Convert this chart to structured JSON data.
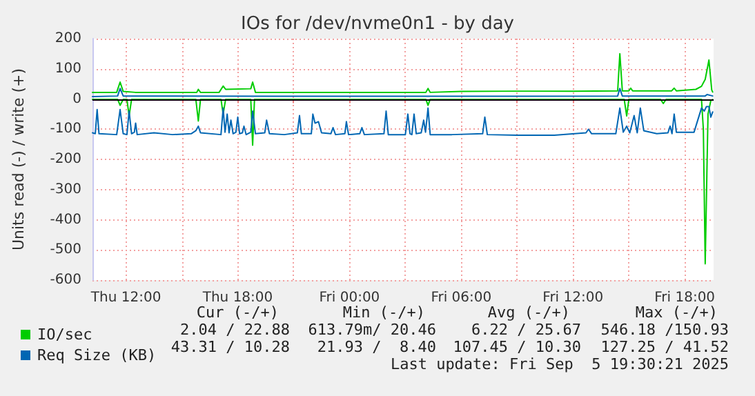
{
  "chart_data": {
    "type": "line",
    "title": "IOs for /dev/nvme0n1 - by day",
    "ylabel": "Units read (-) / write (+)",
    "xlim": [
      "2025-09-04T10:12",
      "2025-09-05T19:33"
    ],
    "ylim": [
      -600,
      200
    ],
    "xticks": [
      {
        "value": "2025-09-04T12:00",
        "label": "Thu 12:00"
      },
      {
        "value": "2025-09-04T15:00",
        "label": null
      },
      {
        "value": "2025-09-04T18:00",
        "label": "Thu 18:00"
      },
      {
        "value": "2025-09-04T21:00",
        "label": null
      },
      {
        "value": "2025-09-05T00:00",
        "label": "Fri 00:00"
      },
      {
        "value": "2025-09-05T03:00",
        "label": null
      },
      {
        "value": "2025-09-05T06:00",
        "label": "Fri 06:00"
      },
      {
        "value": "2025-09-05T09:00",
        "label": null
      },
      {
        "value": "2025-09-05T12:00",
        "label": "Fri 12:00"
      },
      {
        "value": "2025-09-05T15:00",
        "label": null
      },
      {
        "value": "2025-09-05T18:00",
        "label": "Fri 18:00"
      }
    ],
    "yticks": [
      -600,
      -500,
      -400,
      -300,
      -200,
      -100,
      0,
      100,
      200
    ],
    "grid": true,
    "legend": "bottom left",
    "marker": "none",
    "line_style": "solid",
    "ref_lines": [
      {
        "axis": "y",
        "value": 0,
        "color": "#000000"
      }
    ],
    "series": [
      {
        "name": "IO/sec",
        "color": "#00cc00",
        "x": [
          "2025-09-04T10:12",
          "2025-09-04T11:30",
          "2025-09-04T11:41",
          "2025-09-04T11:51",
          "2025-09-04T12:30",
          "2025-09-04T15:48",
          "2025-09-04T15:53",
          "2025-09-04T16:00",
          "2025-09-04T17:00",
          "2025-09-04T17:13",
          "2025-09-04T17:21",
          "2025-09-04T18:42",
          "2025-09-04T18:48",
          "2025-09-04T18:57",
          "2025-09-05T04:06",
          "2025-09-05T04:13",
          "2025-09-05T04:20",
          "2025-09-05T06:00",
          "2025-09-05T09:00",
          "2025-09-05T12:00",
          "2025-09-05T14:24",
          "2025-09-05T14:31",
          "2025-09-05T14:39",
          "2025-09-05T15:00",
          "2025-09-05T15:06",
          "2025-09-05T15:12",
          "2025-09-05T17:18",
          "2025-09-05T17:26",
          "2025-09-05T17:33",
          "2025-09-05T18:36",
          "2025-09-05T18:54",
          "2025-09-05T19:06",
          "2025-09-05T19:18",
          "2025-09-05T19:27",
          "2025-09-05T19:30"
        ],
        "values": [
          22,
          22,
          56,
          25,
          22,
          22,
          32,
          22,
          22,
          43,
          32,
          34,
          56,
          22,
          22,
          35,
          22,
          25,
          26,
          26,
          27,
          150,
          27,
          27,
          36,
          27,
          27,
          36,
          27,
          32,
          42,
          65,
          129,
          30,
          23
        ]
      },
      {
        "color": "#00cc00",
        "x": [
          "2025-09-04T10:12",
          "2025-09-04T11:33",
          "2025-09-04T11:41",
          "2025-09-04T11:51",
          "2025-09-04T12:03",
          "2025-09-04T12:10",
          "2025-09-04T12:18",
          "2025-09-04T15:45",
          "2025-09-04T15:53",
          "2025-09-04T16:00",
          "2025-09-04T17:06",
          "2025-09-04T17:13",
          "2025-09-04T17:21",
          "2025-09-04T18:42",
          "2025-09-04T18:48",
          "2025-09-04T18:54",
          "2025-09-05T04:06",
          "2025-09-05T04:13",
          "2025-09-05T04:20",
          "2025-09-05T14:45",
          "2025-09-05T14:53",
          "2025-09-05T15:00",
          "2025-09-05T16:42",
          "2025-09-05T16:51",
          "2025-09-05T17:00",
          "2025-09-05T18:54",
          "2025-09-05T19:00",
          "2025-09-05T19:06",
          "2025-09-05T19:15",
          "2025-09-05T19:24",
          "2025-09-05T19:30"
        ],
        "values": [
          -1,
          -1,
          -21,
          -1,
          -1,
          -56,
          -1,
          -1,
          -73,
          -1,
          -1,
          -50,
          -1,
          -1,
          -153,
          -1,
          -1,
          -21,
          -1,
          -1,
          -56,
          -1,
          -1,
          -15,
          -1,
          -1,
          -100,
          -546,
          -50,
          -5,
          -2
        ]
      },
      {
        "name": "Req Size (KB)",
        "color": "#0066b3",
        "x": [
          "2025-09-04T10:12",
          "2025-09-04T11:33",
          "2025-09-04T11:41",
          "2025-09-04T11:51",
          "2025-09-04T20:00",
          "2025-09-05T06:00",
          "2025-09-05T14:24",
          "2025-09-05T14:31",
          "2025-09-05T14:39",
          "2025-09-05T19:06",
          "2025-09-05T19:12",
          "2025-09-05T19:30"
        ],
        "values": [
          8,
          10,
          35,
          10,
          9,
          9,
          10,
          35,
          10,
          10,
          15,
          10
        ]
      },
      {
        "color": "#0066b3",
        "x": [
          "2025-09-04T10:12",
          "2025-09-04T10:21",
          "2025-09-04T10:27",
          "2025-09-04T10:33",
          "2025-09-04T11:30",
          "2025-09-04T11:41",
          "2025-09-04T11:51",
          "2025-09-04T12:03",
          "2025-09-04T12:10",
          "2025-09-04T12:18",
          "2025-09-04T12:27",
          "2025-09-04T12:31",
          "2025-09-04T12:36",
          "2025-09-04T13:30",
          "2025-09-04T14:30",
          "2025-09-04T15:30",
          "2025-09-04T15:45",
          "2025-09-04T15:53",
          "2025-09-04T16:00",
          "2025-09-04T17:06",
          "2025-09-04T17:13",
          "2025-09-04T17:19",
          "2025-09-04T17:26",
          "2025-09-04T17:32",
          "2025-09-04T17:38",
          "2025-09-04T17:45",
          "2025-09-04T17:54",
          "2025-09-04T18:00",
          "2025-09-04T18:06",
          "2025-09-04T18:15",
          "2025-09-04T18:20",
          "2025-09-04T18:27",
          "2025-09-04T18:42",
          "2025-09-04T18:48",
          "2025-09-04T18:57",
          "2025-09-04T19:27",
          "2025-09-04T19:33",
          "2025-09-04T19:42",
          "2025-09-04T20:30",
          "2025-09-04T21:12",
          "2025-09-04T21:19",
          "2025-09-04T21:25",
          "2025-09-04T21:57",
          "2025-09-04T22:02",
          "2025-09-04T22:09",
          "2025-09-04T22:20",
          "2025-09-04T22:30",
          "2025-09-04T23:00",
          "2025-09-04T23:07",
          "2025-09-04T23:15",
          "2025-09-04T23:45",
          "2025-09-04T23:50",
          "2025-09-04T23:57",
          "2025-09-05T00:33",
          "2025-09-05T00:40",
          "2025-09-05T00:48",
          "2025-09-05T01:51",
          "2025-09-05T01:58",
          "2025-09-05T02:05",
          "2025-09-05T03:00",
          "2025-09-05T03:08",
          "2025-09-05T03:15",
          "2025-09-05T03:21",
          "2025-09-05T03:28",
          "2025-09-05T03:35",
          "2025-09-05T03:51",
          "2025-09-05T03:59",
          "2025-09-05T04:05",
          "2025-09-05T04:13",
          "2025-09-05T04:20",
          "2025-09-05T05:30",
          "2025-09-05T07:09",
          "2025-09-05T07:16",
          "2025-09-05T07:24",
          "2025-09-05T09:00",
          "2025-09-05T11:00",
          "2025-09-05T12:42",
          "2025-09-05T12:50",
          "2025-09-05T13:00",
          "2025-09-05T14:18",
          "2025-09-05T14:31",
          "2025-09-05T14:42",
          "2025-09-05T14:53",
          "2025-09-05T15:03",
          "2025-09-05T15:17",
          "2025-09-05T15:27",
          "2025-09-05T15:37",
          "2025-09-05T15:48",
          "2025-09-05T16:30",
          "2025-09-05T17:06",
          "2025-09-05T17:13",
          "2025-09-05T17:19",
          "2025-09-05T17:26",
          "2025-09-05T17:33",
          "2025-09-05T18:30",
          "2025-09-05T18:54",
          "2025-09-05T19:03",
          "2025-09-05T19:10",
          "2025-09-05T19:18",
          "2025-09-05T19:24",
          "2025-09-05T19:30"
        ],
        "values": [
          -112,
          -115,
          -35,
          -115,
          -118,
          -35,
          -115,
          -118,
          -40,
          -115,
          -110,
          -80,
          -118,
          -112,
          -118,
          -115,
          -105,
          -90,
          -112,
          -118,
          -30,
          -110,
          -50,
          -112,
          -70,
          -115,
          -110,
          -60,
          -115,
          -112,
          -90,
          -118,
          -110,
          -40,
          -115,
          -112,
          -70,
          -115,
          -118,
          -112,
          -55,
          -115,
          -115,
          -50,
          -80,
          -75,
          -112,
          -115,
          -95,
          -118,
          -115,
          -75,
          -118,
          -115,
          -95,
          -118,
          -115,
          -40,
          -118,
          -118,
          -50,
          -115,
          -118,
          -50,
          -115,
          -112,
          -70,
          -110,
          -30,
          -118,
          -118,
          -115,
          -60,
          -118,
          -120,
          -120,
          -112,
          -100,
          -115,
          -115,
          -30,
          -110,
          -90,
          -112,
          -55,
          -112,
          -30,
          -105,
          -115,
          -112,
          -90,
          -115,
          -50,
          -110,
          -110,
          -30,
          -40,
          -25,
          -25,
          -60,
          -43
        ]
      }
    ],
    "annotations": [
      "Cur (-/+)",
      "Min (-/+)",
      "Avg (-/+)",
      "Max (-/+)",
      "2.04 / 22.88",
      "613.79m/ 20.46",
      "6.22 / 25.67",
      "546.18 /150.93",
      "43.31 / 10.28",
      "21.93 /  8.40",
      "107.45 / 10.30",
      "127.25 / 41.52",
      "Last update: Fri Sep  5 19:30:21 2025"
    ]
  }
}
